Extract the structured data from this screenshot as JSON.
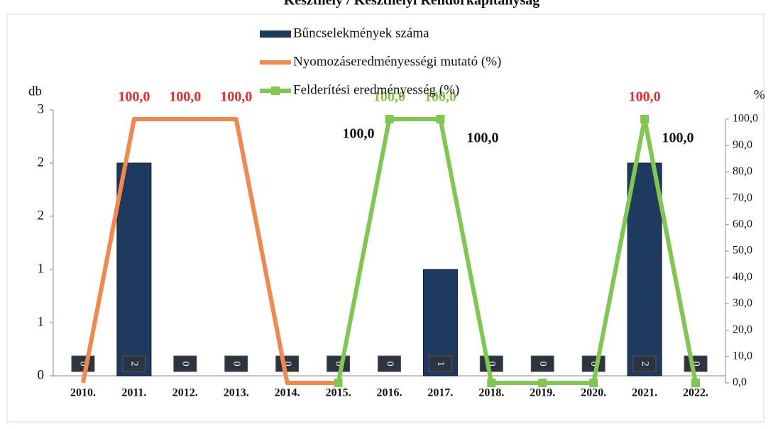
{
  "chart_data": {
    "type": "bar_line",
    "title": "Keszthely / Keszthelyi Rendőrkapitányság",
    "ylabel": "db",
    "y2label": "%",
    "categories": [
      "2010.",
      "2011.",
      "2012.",
      "2013.",
      "2014.",
      "2015.",
      "2016.",
      "2017.",
      "2018.",
      "2019.",
      "2020.",
      "2021.",
      "2022."
    ],
    "series": [
      {
        "name": "Bűncselekmények száma",
        "color": "#1f3a5f",
        "kind": "bar",
        "values": [
          0,
          2,
          0,
          0,
          0,
          0,
          0,
          1,
          0,
          0,
          0,
          2,
          0
        ]
      },
      {
        "name": "Nyomozáseredményességi mutató (%)",
        "color": "#f4874b",
        "kind": "line",
        "axis": "y2",
        "values": [
          0,
          100,
          100,
          100,
          0,
          0,
          null,
          null,
          null,
          null,
          null,
          100,
          0
        ],
        "value_labels": [
          null,
          "100,0",
          "100,0",
          "100,0",
          null,
          null,
          null,
          null,
          null,
          null,
          null,
          "100,0",
          null
        ],
        "label_color": "#ee2b2b"
      },
      {
        "name": "Felderítési eredményesség (%)",
        "color": "#7ec850",
        "kind": "line",
        "axis": "y2",
        "marker": "square",
        "values": [
          null,
          null,
          null,
          null,
          null,
          0,
          100,
          100,
          0,
          0,
          0,
          100,
          0
        ],
        "value_labels": [
          null,
          null,
          null,
          null,
          null,
          null,
          "100,0",
          "100,0",
          null,
          null,
          null,
          null,
          null
        ],
        "label_color": "#86c440"
      }
    ],
    "annotations": [
      "100,0",
      "100,0",
      "100,0"
    ],
    "ylim": [
      0,
      2.5
    ],
    "yticks": [
      0,
      {
        "value": 0.5,
        "label": "1"
      },
      1,
      {
        "value": 1.5,
        "label": "2"
      },
      2,
      {
        "value": 2.5,
        "label": "3"
      }
    ],
    "y2lim": [
      0,
      100
    ],
    "y2ticks": [
      {
        "value": 0,
        "label": "0,0"
      },
      {
        "value": 10,
        "label": "10,0"
      },
      {
        "value": 20,
        "label": "20,0"
      },
      {
        "value": 30,
        "label": "30,0"
      },
      {
        "value": 40,
        "label": "40,0"
      },
      {
        "value": 50,
        "label": "50,0"
      },
      {
        "value": 60,
        "label": "60,0"
      },
      {
        "value": 70,
        "label": "70,0"
      },
      {
        "value": 80,
        "label": "80,0"
      },
      {
        "value": 90,
        "label": "90,0"
      },
      {
        "value": 100,
        "label": "100,0"
      }
    ],
    "grid": false
  }
}
